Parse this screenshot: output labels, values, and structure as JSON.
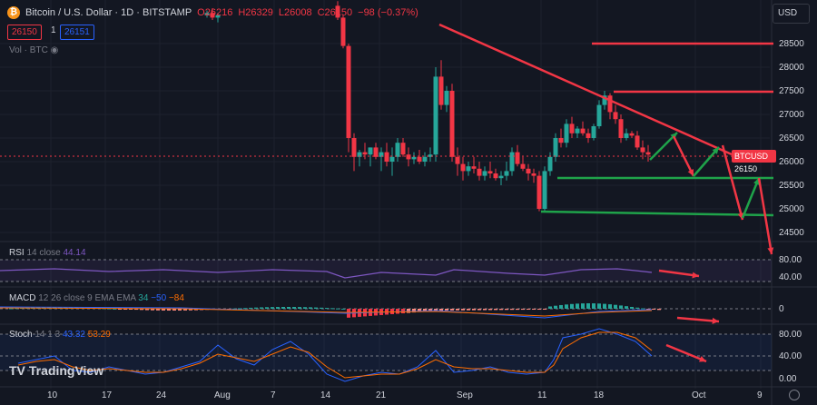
{
  "header": {
    "symbol": "Bitcoin / U.S. Dollar · 1D · BITSTAMP",
    "o": "O26216",
    "h": "H26329",
    "l": "L26008",
    "c": "C26150",
    "chg": "−98 (−0.37%)",
    "sell_price": "26150",
    "qty": "1",
    "buy_price": "26151",
    "vol_label": "Vol · BTC",
    "currency": "USD"
  },
  "price_axis": [
    "28500",
    "28000",
    "27500",
    "27000",
    "26500",
    "26000",
    "25500",
    "25000",
    "24500"
  ],
  "price_tag": "BTCUSD 26150",
  "rsi": {
    "name": "RSI",
    "params": "14 close",
    "value": "44.14",
    "levels": [
      "80.00",
      "40.00"
    ]
  },
  "macd": {
    "name": "MACD",
    "params": "12 26 close 9 EMA EMA",
    "v1": "34",
    "v2": "−50",
    "v3": "−84",
    "level": "0"
  },
  "stoch": {
    "name": "Stoch",
    "params": "14 1 3",
    "v1": "43.32",
    "v2": "53.29",
    "levels": [
      "80.00",
      "40.00",
      "0.00"
    ]
  },
  "time_axis": [
    "10",
    "17",
    "24",
    "Aug",
    "7",
    "14",
    "21",
    "Sep",
    "11",
    "18",
    "Oct",
    "9"
  ],
  "brand": "TradingView",
  "colors": {
    "up": "#26a69a",
    "down": "#f23645",
    "bg": "#131722",
    "line_red": "#f23645",
    "line_green": "#1fa34a"
  }
}
